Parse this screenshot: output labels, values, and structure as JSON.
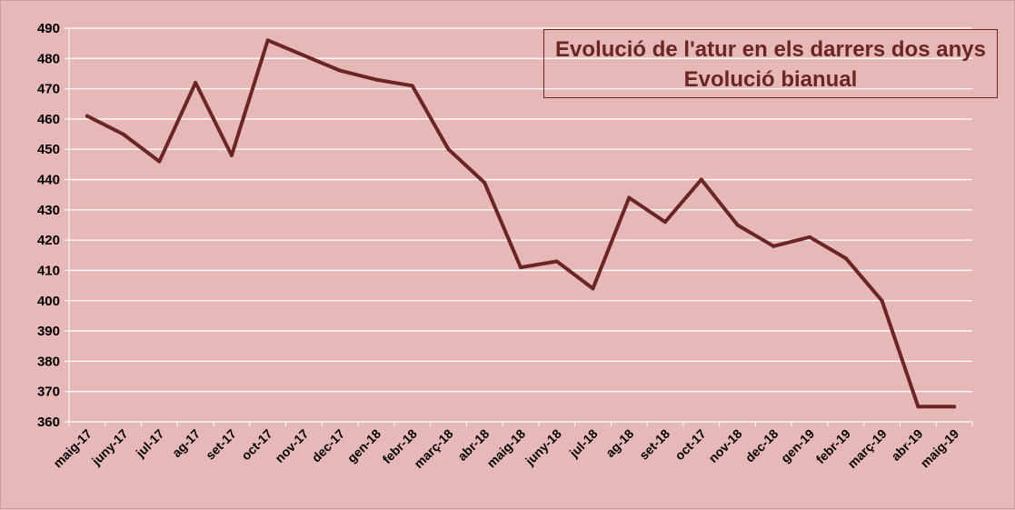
{
  "chart_data": {
    "type": "line",
    "title": "Evolució de l'atur en els darrers dos anys",
    "subtitle": "Evolució bianual",
    "categories": [
      "maig-17",
      "juny-17",
      "jul-17",
      "ag-17",
      "set-17",
      "oct-17",
      "nov-17",
      "dec-17",
      "gen-18",
      "febr-18",
      "març-18",
      "abr-18",
      "maig-18",
      "juny-18",
      "jul-18",
      "ag-18",
      "set-18",
      "oct-17",
      "nov-18",
      "dec-18",
      "gen-19",
      "febr-19",
      "març-19",
      "abr-19",
      "maig-19"
    ],
    "series": [
      {
        "values": [
          461,
          455,
          446,
          472,
          448,
          486,
          481,
          476,
          473,
          471,
          450,
          439,
          411,
          413,
          404,
          434,
          426,
          440,
          425,
          418,
          421,
          414,
          400,
          365,
          365
        ]
      }
    ],
    "ylim": [
      360,
      490
    ],
    "yticks": [
      "360",
      "370",
      "380",
      "390",
      "400",
      "410",
      "420",
      "430",
      "440",
      "450",
      "460",
      "470",
      "480",
      "490"
    ],
    "grid": true,
    "line_color": "#6b2525",
    "grid_color": "#ffffff",
    "background": "#e6b8b7"
  }
}
